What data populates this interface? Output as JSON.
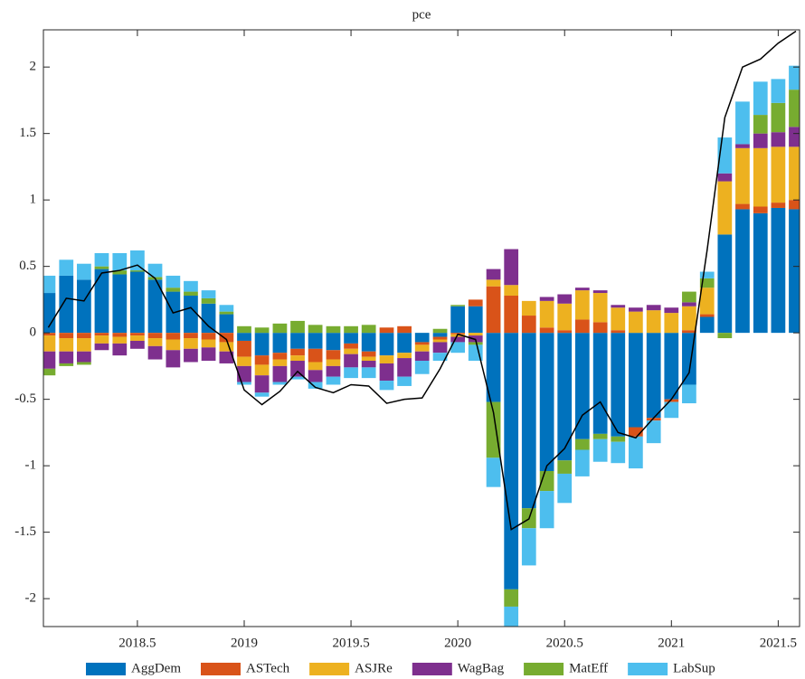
{
  "chart_data": {
    "type": "stacked-bar-line",
    "title": "pce",
    "x": [
      2018.083,
      2018.167,
      2018.25,
      2018.333,
      2018.417,
      2018.5,
      2018.583,
      2018.667,
      2018.75,
      2018.833,
      2018.917,
      2019.0,
      2019.083,
      2019.167,
      2019.25,
      2019.333,
      2019.417,
      2019.5,
      2019.583,
      2019.667,
      2019.75,
      2019.833,
      2019.917,
      2020.0,
      2020.083,
      2020.167,
      2020.25,
      2020.333,
      2020.417,
      2020.5,
      2020.583,
      2020.667,
      2020.75,
      2020.833,
      2020.917,
      2021.0,
      2021.083,
      2021.167,
      2021.25,
      2021.333,
      2021.417,
      2021.5,
      2021.583
    ],
    "series": [
      {
        "name": "AggDem",
        "color": "#0072BD",
        "values": [
          0.3,
          0.43,
          0.4,
          0.48,
          0.44,
          0.46,
          0.4,
          0.31,
          0.28,
          0.22,
          0.14,
          -0.06,
          -0.17,
          -0.15,
          -0.12,
          -0.12,
          -0.13,
          -0.08,
          -0.14,
          -0.17,
          -0.15,
          -0.07,
          -0.03,
          0.2,
          0.2,
          -0.52,
          -1.93,
          -1.32,
          -1.04,
          -0.96,
          -0.8,
          -0.76,
          -0.78,
          -0.71,
          -0.64,
          -0.5,
          -0.39,
          0.12,
          0.74,
          0.93,
          0.9,
          0.94,
          0.93
        ]
      },
      {
        "name": "ASTech",
        "color": "#D95319",
        "values": [
          -0.02,
          -0.04,
          -0.04,
          -0.02,
          -0.03,
          -0.02,
          -0.04,
          -0.05,
          -0.04,
          -0.05,
          -0.07,
          -0.12,
          -0.07,
          -0.05,
          -0.05,
          -0.1,
          -0.07,
          -0.04,
          -0.04,
          0.04,
          0.05,
          -0.02,
          -0.02,
          -0.01,
          0.05,
          0.35,
          0.28,
          0.13,
          0.04,
          0.02,
          0.1,
          0.08,
          0.02,
          -0.07,
          -0.02,
          -0.02,
          0.02,
          0.02,
          0.0,
          0.04,
          0.05,
          0.04,
          0.07
        ]
      },
      {
        "name": "ASJRe",
        "color": "#EDB120",
        "values": [
          -0.12,
          -0.1,
          -0.1,
          -0.06,
          -0.05,
          -0.04,
          -0.06,
          -0.08,
          -0.08,
          -0.06,
          -0.07,
          -0.07,
          -0.08,
          -0.05,
          -0.04,
          -0.06,
          -0.05,
          -0.04,
          -0.03,
          -0.06,
          -0.04,
          -0.05,
          -0.02,
          -0.02,
          -0.02,
          0.05,
          0.08,
          0.11,
          0.2,
          0.2,
          0.22,
          0.22,
          0.17,
          0.16,
          0.17,
          0.15,
          0.18,
          0.2,
          0.4,
          0.42,
          0.44,
          0.42,
          0.4
        ]
      },
      {
        "name": "WagBag",
        "color": "#7E2F8E",
        "values": [
          -0.13,
          -0.09,
          -0.08,
          -0.05,
          -0.09,
          -0.06,
          -0.1,
          -0.13,
          -0.1,
          -0.1,
          -0.09,
          -0.12,
          -0.13,
          -0.12,
          -0.12,
          -0.09,
          -0.08,
          -0.1,
          -0.05,
          -0.13,
          -0.14,
          -0.07,
          -0.08,
          -0.04,
          -0.05,
          0.08,
          0.27,
          0.0,
          0.03,
          0.07,
          0.02,
          0.02,
          0.02,
          0.03,
          0.04,
          0.04,
          0.03,
          0.0,
          0.06,
          0.03,
          0.11,
          0.11,
          0.15
        ]
      },
      {
        "name": "MatEff",
        "color": "#77AC30",
        "values": [
          -0.05,
          -0.02,
          -0.02,
          0.02,
          0.03,
          0.01,
          0.02,
          0.03,
          0.03,
          0.04,
          0.02,
          0.05,
          0.04,
          0.07,
          0.09,
          0.06,
          0.05,
          0.05,
          0.06,
          0.0,
          0.0,
          0.0,
          0.03,
          0.01,
          -0.02,
          -0.42,
          -0.13,
          -0.15,
          -0.15,
          -0.1,
          -0.08,
          -0.04,
          -0.04,
          0.0,
          0.0,
          0.0,
          0.08,
          0.07,
          -0.04,
          0.0,
          0.14,
          0.22,
          0.28
        ]
      },
      {
        "name": "LabSup",
        "color": "#4DBEEE",
        "values": [
          0.13,
          0.12,
          0.12,
          0.1,
          0.13,
          0.15,
          0.1,
          0.09,
          0.08,
          0.06,
          0.05,
          -0.02,
          -0.03,
          -0.02,
          -0.02,
          -0.05,
          -0.06,
          -0.08,
          -0.08,
          -0.07,
          -0.07,
          -0.1,
          -0.06,
          -0.08,
          -0.12,
          -0.22,
          -0.15,
          -0.28,
          -0.28,
          -0.22,
          -0.2,
          -0.17,
          -0.16,
          -0.24,
          -0.17,
          -0.12,
          -0.14,
          0.05,
          0.27,
          0.32,
          0.25,
          0.18,
          0.18
        ]
      }
    ],
    "line": {
      "color": "#000000",
      "values": [
        0.04,
        0.26,
        0.24,
        0.45,
        0.47,
        0.51,
        0.41,
        0.15,
        0.19,
        0.05,
        -0.05,
        -0.43,
        -0.54,
        -0.44,
        -0.29,
        -0.41,
        -0.45,
        -0.39,
        -0.4,
        -0.53,
        -0.5,
        -0.49,
        -0.27,
        -0.01,
        -0.05,
        -0.6,
        -1.48,
        -1.4,
        -1.0,
        -0.87,
        -0.62,
        -0.52,
        -0.75,
        -0.79,
        -0.64,
        -0.5,
        -0.3,
        0.62,
        1.62,
        2.0,
        2.06,
        2.18,
        2.27
      ]
    },
    "xlim": [
      2018.06,
      2021.6
    ],
    "xticks": [
      2018.5,
      2019,
      2019.5,
      2020,
      2020.5,
      2021,
      2021.5
    ],
    "ylim": [
      -2.21,
      2.28
    ],
    "yticks": [
      -2,
      -1.5,
      -1,
      -0.5,
      0,
      0.5,
      1,
      1.5,
      2
    ],
    "legend": "bottom"
  }
}
